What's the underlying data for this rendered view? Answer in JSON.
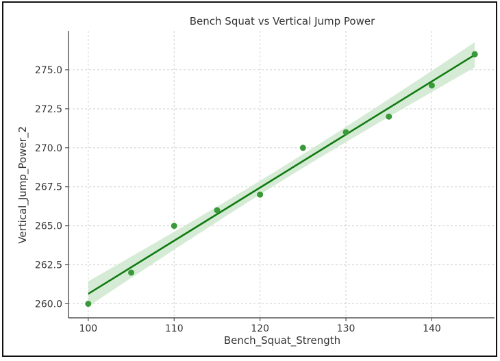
{
  "chart_data": {
    "type": "scatter",
    "title": "Bench Squat vs Vertical Jump Power",
    "xlabel": "Bench_Squat_Strength",
    "ylabel": "Vertical_Jump_Power_2",
    "x": [
      100,
      105,
      110,
      115,
      120,
      125,
      130,
      135,
      140,
      145
    ],
    "y": [
      260,
      262,
      265,
      266,
      267,
      270,
      271,
      272,
      274,
      276
    ],
    "regression_line": {
      "x": [
        100,
        145
      ],
      "y": [
        260.64,
        275.96
      ],
      "confidence_band": true
    },
    "xlim": [
      97.7,
      147.3
    ],
    "ylim": [
      259.1,
      277.5
    ],
    "xticks": [
      "100",
      "110",
      "120",
      "130",
      "140"
    ],
    "yticks": [
      "260.0",
      "262.5",
      "265.0",
      "267.5",
      "270.0",
      "272.5",
      "275.0"
    ],
    "grid": true,
    "colors": {
      "points": "#3a9a3a",
      "line": "#107a10",
      "band": "#cfe8cf"
    }
  }
}
